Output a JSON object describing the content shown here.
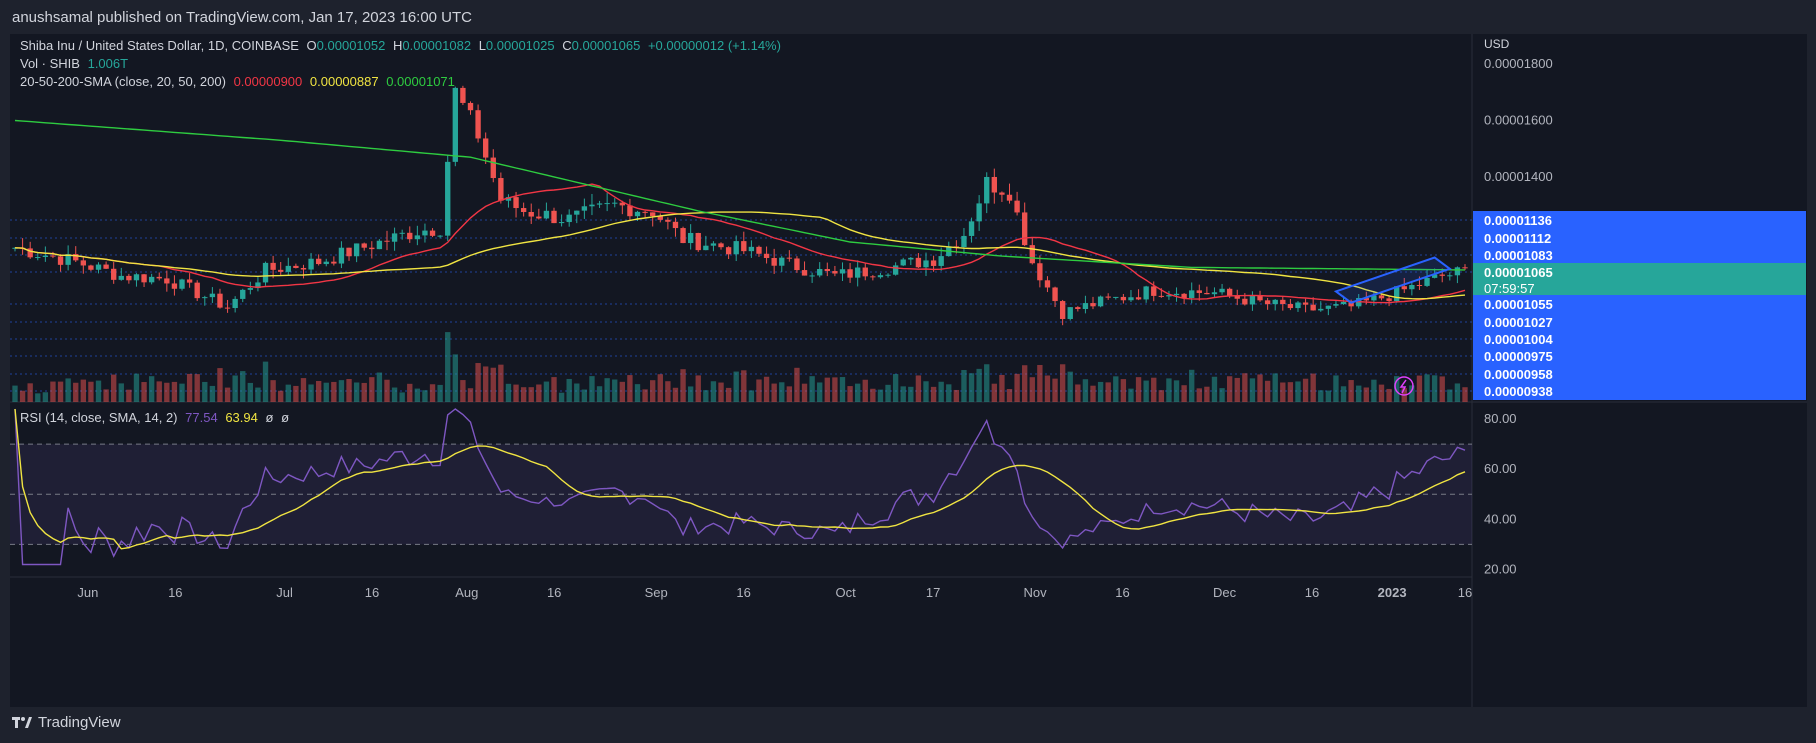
{
  "header": {
    "published": "anushsamal published on TradingView.com, Jan 17, 2023 16:00 UTC"
  },
  "footer": {
    "brand": "TradingView"
  },
  "legend": {
    "symbol": "Shiba Inu / United States Dollar, 1D, COINBASE",
    "o_label": "O",
    "o": "0.00001052",
    "h_label": "H",
    "h": "0.00001082",
    "l_label": "L",
    "l": "0.00001025",
    "c_label": "C",
    "c": "0.00001065",
    "change": "+0.00000012 (+1.14%)",
    "vol_label": "Vol · SHIB",
    "vol": "1.006T",
    "sma_label": "20-50-200-SMA (close, 20, 50, 200)",
    "sma20": "0.00000900",
    "sma50": "0.00000887",
    "sma200": "0.00001071",
    "rsi_label": "RSI (14, close, SMA, 14, 2)",
    "rsi": "77.54",
    "rsi_sma": "63.94",
    "phi1": "ø",
    "phi2": "ø"
  },
  "colors": {
    "up": "#26a69a",
    "down": "#ef5350",
    "sma20": "#f23645",
    "sma50": "#f0e442",
    "sma200": "#2ecc40",
    "rsi": "#7e57c2",
    "rsi_sma": "#f0e442",
    "channel": "#2962ff",
    "price_badge": "#2962ff"
  },
  "chart_data": [
    {
      "type": "candlestick",
      "title": "Shiba Inu / United States Dollar, 1D, COINBASE",
      "y_axis_unit": "USD",
      "y_ticks": [
        "0.00001800",
        "0.00001600",
        "0.00001400"
      ],
      "price_levels": [
        "0.00001136",
        "0.00001112",
        "0.00001083",
        "0.00001065",
        "0.00001055",
        "0.00001027",
        "0.00001004",
        "0.00000975",
        "0.00000958",
        "0.00000938"
      ],
      "current_price": "0.00001065",
      "countdown": "07:59:57",
      "x_ticks": [
        "Jun",
        "16",
        "Jul",
        "16",
        "Aug",
        "16",
        "Sep",
        "16",
        "Oct",
        "17",
        "Nov",
        "16",
        "Dec",
        "16",
        "2023",
        "16"
      ],
      "price_path": [
        [
          0,
          1.15e-05
        ],
        [
          8,
          1.1e-05
        ],
        [
          14,
          1.05e-05
        ],
        [
          20,
          1.04e-05
        ],
        [
          24,
          9.9e-06
        ],
        [
          28,
          9.4e-06
        ],
        [
          33,
          1.07e-05
        ],
        [
          40,
          1.1e-05
        ],
        [
          47,
          1.16e-05
        ],
        [
          53,
          1.21e-05
        ],
        [
          56,
          1.22e-05
        ],
        [
          58,
          1.7e-05
        ],
        [
          61,
          1.55e-05
        ],
        [
          64,
          1.32e-05
        ],
        [
          67,
          1.28e-05
        ],
        [
          73,
          1.25e-05
        ],
        [
          79,
          1.3e-05
        ],
        [
          84,
          1.28e-05
        ],
        [
          88,
          1.18e-05
        ],
        [
          96,
          1.14e-05
        ],
        [
          102,
          1.09e-05
        ],
        [
          108,
          1.05e-05
        ],
        [
          113,
          1.07e-05
        ],
        [
          121,
          1.11e-05
        ],
        [
          125,
          1.2e-05
        ],
        [
          128,
          1.38e-05
        ],
        [
          131,
          1.35e-05
        ],
        [
          134,
          1.1e-05
        ],
        [
          138,
          9.2e-06
        ],
        [
          142,
          9.5e-06
        ],
        [
          150,
          1e-05
        ],
        [
          158,
          9.9e-06
        ],
        [
          165,
          9.5e-06
        ],
        [
          170,
          9.3e-06
        ],
        [
          176,
          9.4e-06
        ],
        [
          182,
          9.9e-06
        ],
        [
          188,
          1.05e-05
        ],
        [
          191,
          1.065e-05
        ]
      ],
      "sma200_path": [
        [
          0,
          1.6e-05
        ],
        [
          35,
          1.53e-05
        ],
        [
          60,
          1.47e-05
        ],
        [
          90,
          1.28e-05
        ],
        [
          110,
          1.17e-05
        ],
        [
          130,
          1.12e-05
        ],
        [
          155,
          1.08e-05
        ],
        [
          191,
          1.071e-05
        ]
      ],
      "rsi_y_ticks": [
        "80.00",
        "60.00",
        "40.00",
        "20.00"
      ],
      "rsi_levels": [
        70,
        50,
        30
      ]
    }
  ]
}
